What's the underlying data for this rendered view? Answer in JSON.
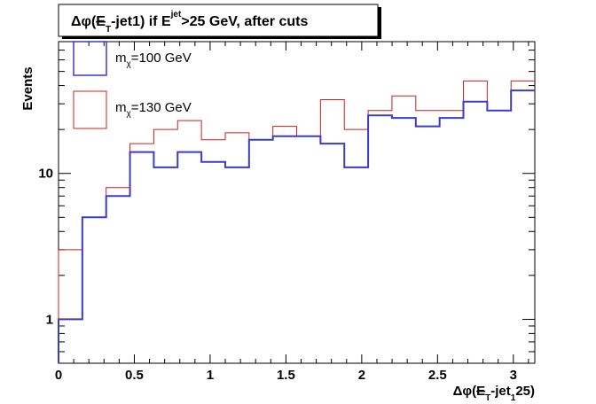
{
  "chart_data": {
    "type": "step-histogram",
    "title": {
      "pre": "Δφ(",
      "met": "E",
      "sub_T": "T",
      "mid": "-jet1) if E",
      "sup_jet": "jet",
      "post": ">25 GeV, after cuts"
    },
    "xlabel": {
      "pre": "Δφ(",
      "met": "E",
      "sub_T": "T",
      "mid": "-jet",
      "sub_1": "1",
      "post": "25)"
    },
    "ylabel": "Events",
    "xlim": [
      0,
      3.14159
    ],
    "ylim": [
      0.5,
      80
    ],
    "yscale": "log",
    "bin_width": 0.1571,
    "x_ticks": [
      {
        "value": 0,
        "label": "0"
      },
      {
        "value": 0.5,
        "label": "0.5"
      },
      {
        "value": 1,
        "label": "1"
      },
      {
        "value": 1.5,
        "label": "1.5"
      },
      {
        "value": 2,
        "label": "2"
      },
      {
        "value": 2.5,
        "label": "2.5"
      },
      {
        "value": 3,
        "label": "3"
      }
    ],
    "y_major_ticks": [
      {
        "value": 1,
        "label": "1"
      },
      {
        "value": 10,
        "label": "10"
      }
    ],
    "series": [
      {
        "name": {
          "pre": "m",
          "sub": "χ",
          "post": "=100 GeV"
        },
        "color": "#3b3bc8",
        "values": [
          1,
          5,
          7,
          14,
          11,
          14,
          12,
          11,
          17,
          18,
          18,
          16,
          11,
          25,
          24,
          21,
          24,
          31,
          27,
          37
        ]
      },
      {
        "name": {
          "pre": "m",
          "sub": "χ",
          "post": "=130 GeV"
        },
        "color": "#cc1f1f",
        "values": [
          3,
          5,
          8,
          16,
          20,
          23,
          17,
          19,
          17,
          21,
          18,
          32,
          20,
          27,
          34,
          27,
          27,
          43,
          27,
          43
        ]
      }
    ]
  }
}
